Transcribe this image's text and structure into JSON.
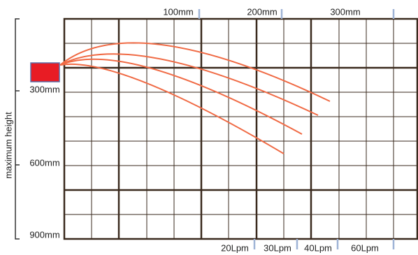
{
  "top_labels": [
    "100mm",
    "200mm",
    "300mm"
  ],
  "left_labels": [
    "300mm",
    "600mm",
    "900mm"
  ],
  "axis_title": "maximum height",
  "bottom_labels": [
    "20Lpm",
    "30Lpm",
    "40Lpm",
    "60Lpm"
  ]
}
